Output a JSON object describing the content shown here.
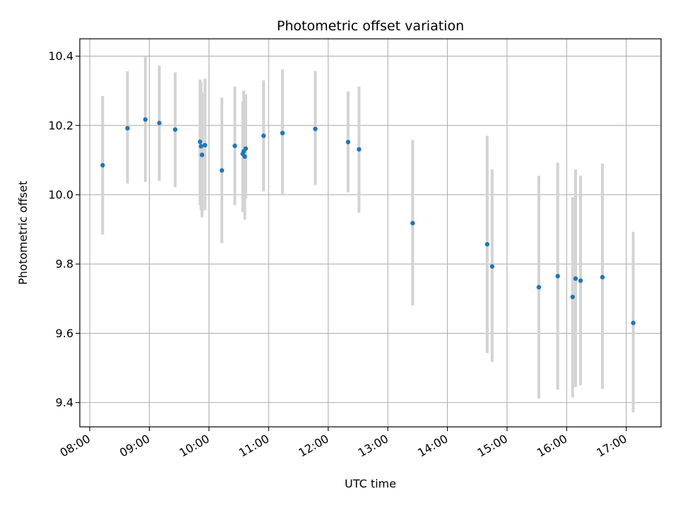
{
  "chart_data": {
    "type": "scatter",
    "title": "Photometric offset variation",
    "xlabel": "UTC time",
    "ylabel": "Photometric offset",
    "x_ticks": [
      "08:00",
      "09:00",
      "10:00",
      "11:00",
      "12:00",
      "13:00",
      "14:00",
      "15:00",
      "16:00",
      "17:00"
    ],
    "y_ticks": [
      "9.4",
      "9.6",
      "9.8",
      "10.0",
      "10.2",
      "10.4"
    ],
    "xlim": [
      "07:50",
      "17:35"
    ],
    "ylim": [
      9.33,
      10.45
    ],
    "grid": true,
    "errorbars": true,
    "points": [
      {
        "x": "08:13",
        "y": 10.085,
        "yerr_low": 9.885,
        "yerr_high": 10.285
      },
      {
        "x": "08:38",
        "y": 10.192,
        "yerr_low": 10.032,
        "yerr_high": 10.356
      },
      {
        "x": "08:56",
        "y": 10.217,
        "yerr_low": 10.037,
        "yerr_high": 10.398
      },
      {
        "x": "09:10",
        "y": 10.207,
        "yerr_low": 10.04,
        "yerr_high": 10.373
      },
      {
        "x": "09:26",
        "y": 10.188,
        "yerr_low": 10.022,
        "yerr_high": 10.353
      },
      {
        "x": "09:51",
        "y": 10.153,
        "yerr_low": 9.97,
        "yerr_high": 10.333
      },
      {
        "x": "09:52",
        "y": 10.14,
        "yerr_low": 9.955,
        "yerr_high": 10.325
      },
      {
        "x": "09:53",
        "y": 10.115,
        "yerr_low": 9.935,
        "yerr_high": 10.295
      },
      {
        "x": "09:56",
        "y": 10.143,
        "yerr_low": 9.955,
        "yerr_high": 10.335
      },
      {
        "x": "10:13",
        "y": 10.07,
        "yerr_low": 9.86,
        "yerr_high": 10.28
      },
      {
        "x": "10:26",
        "y": 10.141,
        "yerr_low": 9.97,
        "yerr_high": 10.312
      },
      {
        "x": "10:34",
        "y": 10.118,
        "yerr_low": 9.95,
        "yerr_high": 10.27
      },
      {
        "x": "10:35",
        "y": 10.125,
        "yerr_low": 9.96,
        "yerr_high": 10.3
      },
      {
        "x": "10:36",
        "y": 10.11,
        "yerr_low": 9.928,
        "yerr_high": 10.29
      },
      {
        "x": "10:37",
        "y": 10.133,
        "yerr_low": 9.99,
        "yerr_high": 10.29
      },
      {
        "x": "10:55",
        "y": 10.17,
        "yerr_low": 10.01,
        "yerr_high": 10.33
      },
      {
        "x": "11:14",
        "y": 10.178,
        "yerr_low": 9.998,
        "yerr_high": 10.362
      },
      {
        "x": "11:47",
        "y": 10.19,
        "yerr_low": 10.028,
        "yerr_high": 10.357
      },
      {
        "x": "12:20",
        "y": 10.152,
        "yerr_low": 10.007,
        "yerr_high": 10.298
      },
      {
        "x": "12:31",
        "y": 10.131,
        "yerr_low": 9.948,
        "yerr_high": 10.312
      },
      {
        "x": "13:25",
        "y": 9.918,
        "yerr_low": 9.68,
        "yerr_high": 10.158
      },
      {
        "x": "14:40",
        "y": 9.857,
        "yerr_low": 9.543,
        "yerr_high": 10.17
      },
      {
        "x": "14:45",
        "y": 9.793,
        "yerr_low": 9.517,
        "yerr_high": 10.073
      },
      {
        "x": "15:32",
        "y": 9.733,
        "yerr_low": 9.412,
        "yerr_high": 10.055
      },
      {
        "x": "15:51",
        "y": 9.765,
        "yerr_low": 9.437,
        "yerr_high": 10.093
      },
      {
        "x": "16:06",
        "y": 9.705,
        "yerr_low": 9.415,
        "yerr_high": 9.993
      },
      {
        "x": "16:09",
        "y": 9.758,
        "yerr_low": 9.445,
        "yerr_high": 10.073
      },
      {
        "x": "16:14",
        "y": 9.752,
        "yerr_low": 9.45,
        "yerr_high": 10.055
      },
      {
        "x": "16:36",
        "y": 9.762,
        "yerr_low": 9.44,
        "yerr_high": 10.09
      },
      {
        "x": "17:07",
        "y": 9.63,
        "yerr_low": 9.372,
        "yerr_high": 9.893
      }
    ],
    "colors": {
      "marker": "#1f77b4",
      "errorbar": "#d3d3d3",
      "grid": "#b0b0b0",
      "axes": "#000000"
    }
  }
}
